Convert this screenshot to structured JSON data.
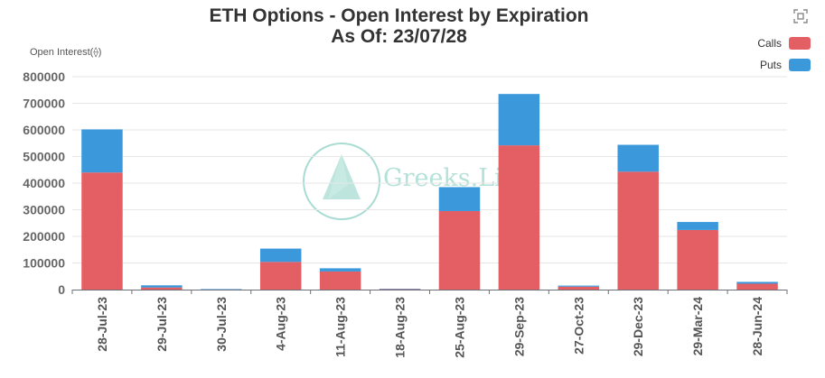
{
  "chart_data": {
    "type": "bar",
    "stacked": true,
    "title": "ETH Options - Open Interest by Expiration",
    "subtitle": "As Of: 23/07/28",
    "ylabel": "Open Interest(⟠)",
    "xlabel": "",
    "ylim": [
      0,
      800000
    ],
    "yticks": [
      0,
      100000,
      200000,
      300000,
      400000,
      500000,
      600000,
      700000,
      800000
    ],
    "grid": true,
    "legend_position": "top-right",
    "categories": [
      "28-Jul-23",
      "29-Jul-23",
      "30-Jul-23",
      "4-Aug-23",
      "11-Aug-23",
      "18-Aug-23",
      "25-Aug-23",
      "29-Sep-23",
      "27-Oct-23",
      "29-Dec-23",
      "29-Mar-24",
      "28-Jun-24"
    ],
    "series": [
      {
        "name": "Calls",
        "color": "#e45f64",
        "values": [
          440000,
          8000,
          1000,
          104000,
          68000,
          2000,
          295000,
          542000,
          11000,
          443000,
          224000,
          22000
        ]
      },
      {
        "name": "Puts",
        "color": "#3a98db",
        "values": [
          162000,
          8000,
          1000,
          50000,
          12000,
          1000,
          90000,
          193000,
          4000,
          101000,
          30000,
          7000
        ]
      }
    ]
  },
  "watermark": {
    "text": "Greeks.Live",
    "icon": "greeks-live-logo-icon"
  },
  "toolbar": {
    "icon": "expand-icon"
  }
}
